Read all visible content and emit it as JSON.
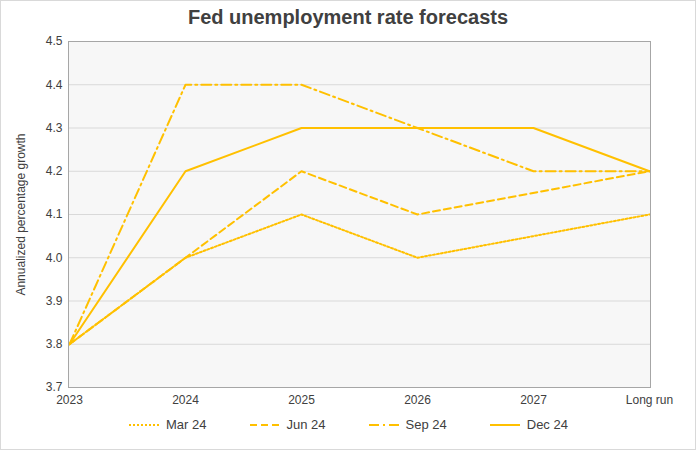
{
  "chart_data": {
    "type": "line",
    "title": "Fed unemployment rate forecasts",
    "y_label": "Annualized percentage growth",
    "categories": [
      "2023",
      "2024",
      "2025",
      "2026",
      "2027",
      "Long run"
    ],
    "series": [
      {
        "name": "Mar 24",
        "color": "#ffc000",
        "line_style": "dotted",
        "values": [
          3.8,
          4.0,
          4.1,
          4.0,
          null,
          4.1
        ]
      },
      {
        "name": "Jun 24",
        "color": "#ffc000",
        "line_style": "dashed",
        "values": [
          3.8,
          4.0,
          4.2,
          4.1,
          null,
          4.2
        ]
      },
      {
        "name": "Sep 24",
        "color": "#ffc000",
        "line_style": "dashdot",
        "values": [
          3.8,
          4.4,
          4.4,
          4.3,
          4.2,
          4.2
        ]
      },
      {
        "name": "Dec 24",
        "color": "#ffc000",
        "line_style": "solid",
        "values": [
          3.8,
          4.2,
          4.3,
          4.3,
          4.3,
          4.2
        ]
      }
    ],
    "ylim": [
      3.7,
      4.5
    ],
    "yticks": [
      {
        "value": 3.7,
        "label": "3.7"
      },
      {
        "value": 3.8,
        "label": "3.8"
      },
      {
        "value": 3.9,
        "label": "3.9"
      },
      {
        "value": 4.0,
        "label": "4.0"
      },
      {
        "value": 4.1,
        "label": "4.1"
      },
      {
        "value": 4.2,
        "label": "4.2"
      },
      {
        "value": 4.3,
        "label": "4.3"
      },
      {
        "value": 4.4,
        "label": "4.4"
      },
      {
        "value": 4.5,
        "label": "4.5"
      }
    ],
    "grid": true,
    "legend": "bottom"
  }
}
